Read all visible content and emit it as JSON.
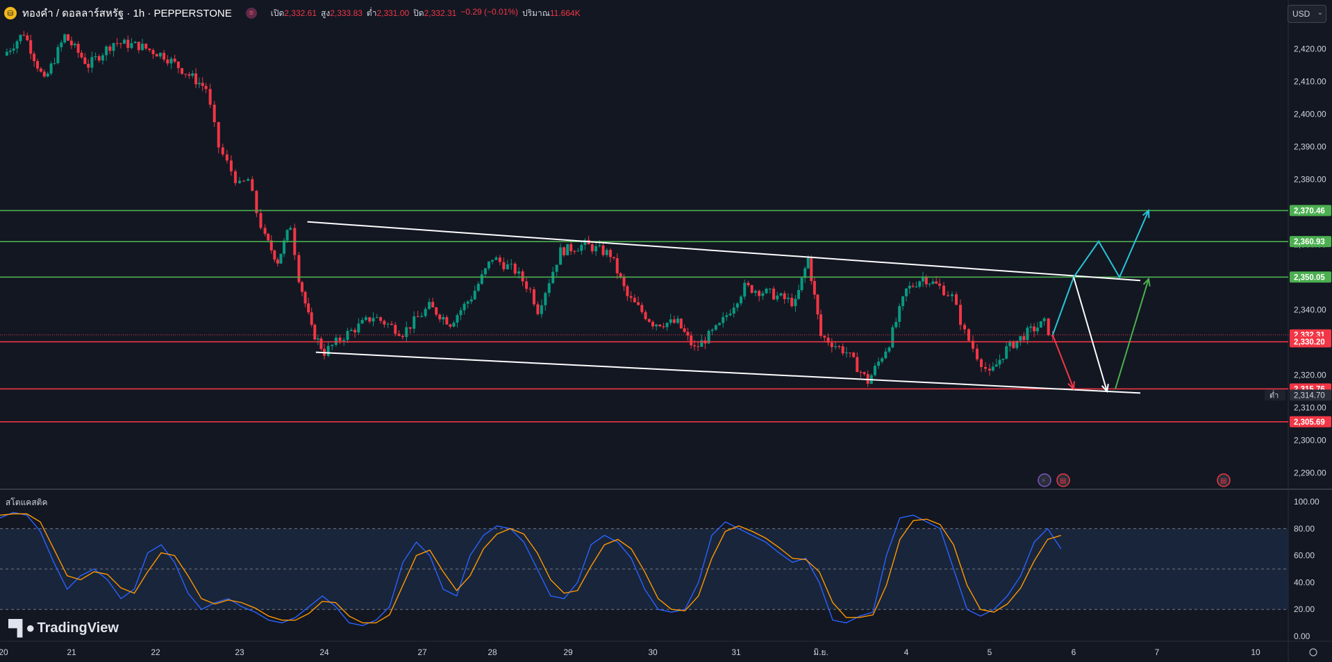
{
  "header": {
    "logo_icon": "gold-coin-icon",
    "title": "ทองคำ / ดอลลาร์สหรัฐ · 1h · PEPPERSTONE",
    "session_icon": "market-session-icon",
    "open_label": "เปิด",
    "open_value": "2,332.61",
    "high_label": "สูง",
    "high_value": "2,333.83",
    "low_label": "ต่ำ",
    "low_value": "2,331.00",
    "close_label": "ปิด",
    "close_value": "2,332.31",
    "change": "−0.29 (−0.01%)",
    "volume_label": "ปริมาณ",
    "volume_value": "11.664K"
  },
  "currency": {
    "selected": "USD"
  },
  "indicator": {
    "title": "สโตแคสติค"
  },
  "branding": {
    "text": "TradingView",
    "icon": "tradingview-logo-icon"
  },
  "chart_data": [
    {
      "type": "candlestick",
      "title": "ทองคำ / ดอลลาร์สหรัฐ · 1h · PEPPERSTONE",
      "x_ticks": [
        "20",
        "21",
        "22",
        "23",
        "24",
        "27",
        "28",
        "29",
        "30",
        "31",
        "มิ.ย.",
        "4",
        "5",
        "6",
        "7",
        "10"
      ],
      "y_ticks": [
        "2,420.00",
        "2,410.00",
        "2,400.00",
        "2,390.00",
        "2,380.00",
        "2,370.00",
        "2,360.00",
        "2,350.00",
        "2,340.00",
        "2,330.00",
        "2,320.00",
        "2,310.00",
        "2,300.00",
        "2,290.00"
      ],
      "ylim": [
        2285,
        2428
      ],
      "colors": {
        "up": "#089981",
        "down": "#f23645",
        "support": "#f23645",
        "resistance": "#4caf50",
        "channel": "#ffffff"
      },
      "ohlc_path": [
        [
          0,
          2418
        ],
        [
          0.3,
          2425
        ],
        [
          0.6,
          2410
        ],
        [
          0.9,
          2424
        ],
        [
          1.2,
          2415
        ],
        [
          1.5,
          2422
        ],
        [
          1.8,
          2421
        ],
        [
          2.1,
          2418
        ],
        [
          2.4,
          2412
        ],
        [
          2.6,
          2408
        ],
        [
          2.75,
          2390
        ],
        [
          2.85,
          2385
        ],
        [
          3.0,
          2378
        ],
        [
          3.1,
          2380
        ],
        [
          3.2,
          2370
        ],
        [
          3.3,
          2362
        ],
        [
          3.45,
          2355
        ],
        [
          3.6,
          2366
        ],
        [
          3.7,
          2350
        ],
        [
          3.85,
          2334
        ],
        [
          4.0,
          2327
        ],
        [
          4.2,
          2332
        ],
        [
          4.5,
          2338
        ],
        [
          4.8,
          2333
        ],
        [
          5.1,
          2341
        ],
        [
          5.4,
          2336
        ],
        [
          5.7,
          2344
        ],
        [
          6.0,
          2356
        ],
        [
          6.3,
          2352
        ],
        [
          6.5,
          2346
        ],
        [
          6.6,
          2340
        ],
        [
          6.9,
          2358
        ],
        [
          7.2,
          2360
        ],
        [
          7.5,
          2357
        ],
        [
          7.7,
          2344
        ],
        [
          8.0,
          2336
        ],
        [
          8.3,
          2336
        ],
        [
          8.5,
          2328
        ],
        [
          8.8,
          2335
        ],
        [
          9.1,
          2347
        ],
        [
          9.4,
          2345
        ],
        [
          9.7,
          2342
        ],
        [
          9.85,
          2356
        ],
        [
          10.0,
          2332
        ],
        [
          10.3,
          2327
        ],
        [
          10.55,
          2318
        ],
        [
          10.8,
          2330
        ],
        [
          11.0,
          2346
        ],
        [
          11.2,
          2350
        ],
        [
          11.4,
          2347
        ],
        [
          11.55,
          2344
        ],
        [
          11.7,
          2333
        ],
        [
          11.85,
          2326
        ],
        [
          12.0,
          2320
        ],
        [
          12.2,
          2328
        ],
        [
          12.45,
          2333
        ],
        [
          12.65,
          2336
        ],
        [
          12.75,
          2331
        ]
      ],
      "horizontal_levels": [
        {
          "value": 2370.46,
          "label": "2,370.46",
          "kind": "resistance"
        },
        {
          "value": 2360.93,
          "label": "2,360.93",
          "kind": "resistance"
        },
        {
          "value": 2350.05,
          "label": "2,350.05",
          "kind": "resistance"
        },
        {
          "value": 2332.31,
          "label": "2,332.31",
          "kind": "last_price"
        },
        {
          "value": 2330.2,
          "label": "2,330.20",
          "kind": "support"
        },
        {
          "value": 2315.76,
          "label": "2,315.76",
          "kind": "support"
        },
        {
          "value": 2305.69,
          "label": "2,305.69",
          "kind": "support"
        }
      ],
      "low_marker": {
        "label": "ต่ำ",
        "value": "2,314.70"
      },
      "channel": {
        "upper": [
          [
            3.8,
            2367
          ],
          [
            13.8,
            2349
          ]
        ],
        "lower": [
          [
            3.9,
            2327
          ],
          [
            13.8,
            2314.5
          ]
        ]
      },
      "projections": [
        {
          "color": "#26c6da",
          "points": [
            [
              12.75,
              2332.3
            ],
            [
              13.0,
              2350
            ],
            [
              13.3,
              2361
            ],
            [
              13.55,
              2350
            ],
            [
              13.9,
              2370.5
            ]
          ]
        },
        {
          "color": "#ffffff",
          "points": [
            [
              13.0,
              2350
            ],
            [
              13.4,
              2315
            ]
          ]
        },
        {
          "color": "#f23645",
          "points": [
            [
              12.75,
              2332.3
            ],
            [
              13.0,
              2315.8
            ]
          ]
        },
        {
          "color": "#4caf50",
          "points": [
            [
              13.5,
              2315.8
            ],
            [
              13.9,
              2349.5
            ]
          ]
        }
      ],
      "event_icons": [
        "lightning-icon",
        "us-flag-icon",
        "us-flag-icon"
      ]
    },
    {
      "type": "line",
      "title": "สโตแคสติค",
      "y_ticks": [
        "100.00",
        "80.00",
        "60.00",
        "40.00",
        "20.00",
        "0.00"
      ],
      "ylim": [
        0,
        100
      ],
      "band": [
        20,
        80
      ],
      "series": [
        {
          "name": "",
          "color": "#2962ff",
          "values": [
            88,
            92,
            90,
            78,
            55,
            35,
            45,
            50,
            42,
            28,
            35,
            62,
            68,
            55,
            32,
            20,
            25,
            28,
            22,
            18,
            12,
            10,
            14,
            22,
            30,
            22,
            10,
            8,
            12,
            22,
            55,
            70,
            60,
            35,
            30,
            60,
            75,
            82,
            80,
            70,
            50,
            30,
            28,
            40,
            68,
            75,
            70,
            58,
            35,
            20,
            18,
            20,
            40,
            75,
            85,
            80,
            75,
            70,
            62,
            55,
            58,
            40,
            12,
            10,
            15,
            18,
            60,
            88,
            90,
            85,
            80,
            50,
            20,
            15,
            20,
            30,
            45,
            70,
            80,
            65
          ]
        },
        {
          "name": "",
          "color": "#ff9800",
          "values": [
            90,
            91,
            91,
            85,
            65,
            45,
            42,
            48,
            46,
            36,
            32,
            48,
            62,
            60,
            45,
            28,
            24,
            27,
            25,
            21,
            15,
            12,
            12,
            17,
            26,
            25,
            15,
            10,
            10,
            16,
            38,
            60,
            64,
            48,
            34,
            45,
            65,
            76,
            80,
            76,
            62,
            42,
            32,
            34,
            52,
            68,
            72,
            65,
            48,
            28,
            20,
            19,
            30,
            58,
            78,
            82,
            78,
            73,
            66,
            58,
            57,
            48,
            25,
            14,
            14,
            16,
            38,
            72,
            86,
            87,
            83,
            68,
            38,
            20,
            18,
            24,
            36,
            56,
            72,
            75
          ]
        }
      ]
    }
  ]
}
